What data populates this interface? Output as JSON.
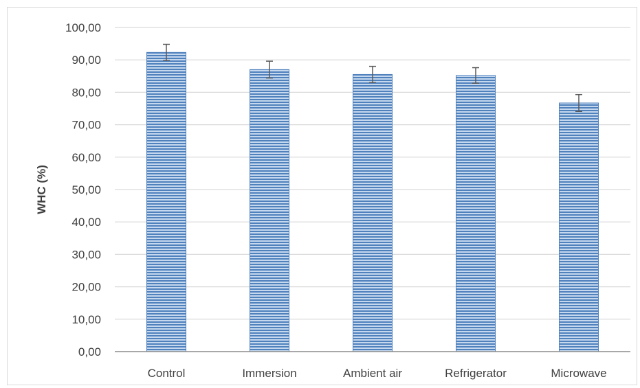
{
  "chart_data": {
    "type": "bar",
    "title": "",
    "xlabel": "",
    "ylabel": "WHC (%)",
    "categories": [
      "Control",
      "Immersion",
      "Ambient air",
      "Refrigerator",
      "Microwave"
    ],
    "values": [
      92.3,
      87.0,
      85.5,
      85.2,
      76.7
    ],
    "error": [
      2.5,
      2.6,
      2.5,
      2.4,
      2.6
    ],
    "ylim": [
      0,
      100
    ],
    "yticks": [
      "0,00",
      "10,00",
      "20,00",
      "30,00",
      "40,00",
      "50,00",
      "60,00",
      "70,00",
      "80,00",
      "90,00",
      "100,00"
    ],
    "grid": true,
    "legend": "none",
    "colors": {
      "bar": "#4f81bd",
      "bar_light": "#c6d8ee",
      "grid": "#d9d9d9",
      "axis": "#8c8c8c",
      "error": "#595959"
    }
  }
}
